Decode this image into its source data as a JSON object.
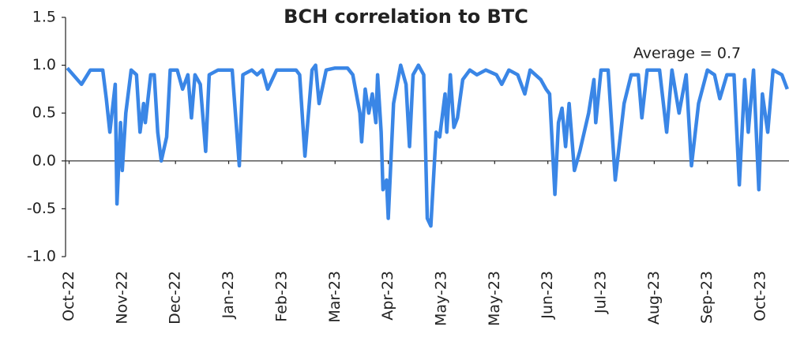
{
  "chart_data": {
    "type": "line",
    "title": "BCH correlation to BTC",
    "annotation": "Average = 0.7",
    "x": [
      -1,
      7,
      12,
      19,
      21,
      23,
      26,
      27,
      29,
      30,
      32,
      35,
      38,
      40,
      42,
      43,
      46,
      48,
      50,
      52,
      55,
      57,
      61,
      64,
      67,
      69,
      71,
      74,
      77,
      79,
      84,
      88,
      92,
      96,
      98,
      103,
      106,
      109,
      112,
      117,
      123,
      128,
      130,
      133,
      137,
      139,
      141,
      145,
      150,
      157,
      160,
      164,
      165,
      167,
      169,
      171,
      173,
      174,
      176,
      177,
      179,
      180,
      183,
      187,
      190,
      192,
      194,
      197,
      200,
      202,
      204,
      207,
      209,
      212,
      213,
      215,
      217,
      219,
      222,
      226,
      230,
      235,
      241,
      244,
      248,
      253,
      257,
      260,
      266,
      269,
      271,
      274,
      276,
      278,
      280,
      282,
      285,
      288,
      293,
      296,
      297,
      300,
      304,
      308,
      313,
      317,
      321,
      323,
      326,
      333,
      337,
      340,
      344,
      348,
      351,
      355,
      360,
      364,
      367,
      371,
      375,
      378,
      381,
      383,
      386,
      389,
      391,
      394,
      397,
      402,
      405
    ],
    "series": [
      {
        "name": "BCH correlation to BTC",
        "color": "#3a86e6",
        "values": [
          0.97,
          0.8,
          0.95,
          0.95,
          0.65,
          0.3,
          0.8,
          -0.45,
          0.4,
          -0.1,
          0.5,
          0.95,
          0.9,
          0.3,
          0.6,
          0.4,
          0.9,
          0.9,
          0.3,
          0,
          0.25,
          0.95,
          0.95,
          0.75,
          0.9,
          0.45,
          0.9,
          0.8,
          0.1,
          0.9,
          0.95,
          0.95,
          0.95,
          -0.05,
          0.9,
          0.95,
          0.9,
          0.95,
          0.75,
          0.95,
          0.95,
          0.95,
          0.9,
          0.05,
          0.95,
          1.0,
          0.6,
          0.95,
          0.97,
          0.97,
          0.9,
          0.5,
          0.2,
          0.75,
          0.5,
          0.7,
          0.4,
          0.9,
          0.3,
          -0.3,
          -0.2,
          -0.6,
          0.6,
          1.0,
          0.8,
          0.15,
          0.9,
          1.0,
          0.9,
          -0.6,
          -0.68,
          0.3,
          0.25,
          0.7,
          0.3,
          0.9,
          0.35,
          0.45,
          0.85,
          0.95,
          0.9,
          0.95,
          0.9,
          0.8,
          0.95,
          0.9,
          0.7,
          0.95,
          0.85,
          0.75,
          0.7,
          -0.35,
          0.4,
          0.55,
          0.15,
          0.6,
          -0.1,
          0.1,
          0.5,
          0.85,
          0.4,
          0.95,
          0.95,
          -0.2,
          0.6,
          0.9,
          0.9,
          0.45,
          0.95,
          0.95,
          0.3,
          0.95,
          0.5,
          0.9,
          -0.05,
          0.6,
          0.95,
          0.9,
          0.65,
          0.9,
          0.9,
          -0.25,
          0.85,
          0.3,
          0.95,
          -0.3,
          0.7,
          0.3,
          0.95,
          0.9,
          0.75
        ]
      }
    ],
    "xlim": [
      -2,
      406
    ],
    "xticks": [
      {
        "value": 0,
        "label": "Oct-22"
      },
      {
        "value": 30,
        "label": "Nov-22"
      },
      {
        "value": 60,
        "label": "Dec-22"
      },
      {
        "value": 90,
        "label": "Jan-23"
      },
      {
        "value": 120,
        "label": "Feb-23"
      },
      {
        "value": 150,
        "label": "Mar-23"
      },
      {
        "value": 180,
        "label": "Apr-23"
      },
      {
        "value": 210,
        "label": "May-23"
      },
      {
        "value": 240,
        "label": "May-23"
      },
      {
        "value": 270,
        "label": "Jun-23"
      },
      {
        "value": 300,
        "label": "Jul-23"
      },
      {
        "value": 330,
        "label": "Aug-23"
      },
      {
        "value": 360,
        "label": "Sep-23"
      },
      {
        "value": 390,
        "label": "Oct-23"
      }
    ],
    "ylim": [
      -1,
      1.5
    ],
    "yticks": [
      {
        "value": -1,
        "label": "-1.0"
      },
      -0.5,
      {
        "value": 0,
        "label": "0.0"
      },
      0.5,
      {
        "value": 1,
        "label": "1.0"
      },
      1.5
    ]
  }
}
